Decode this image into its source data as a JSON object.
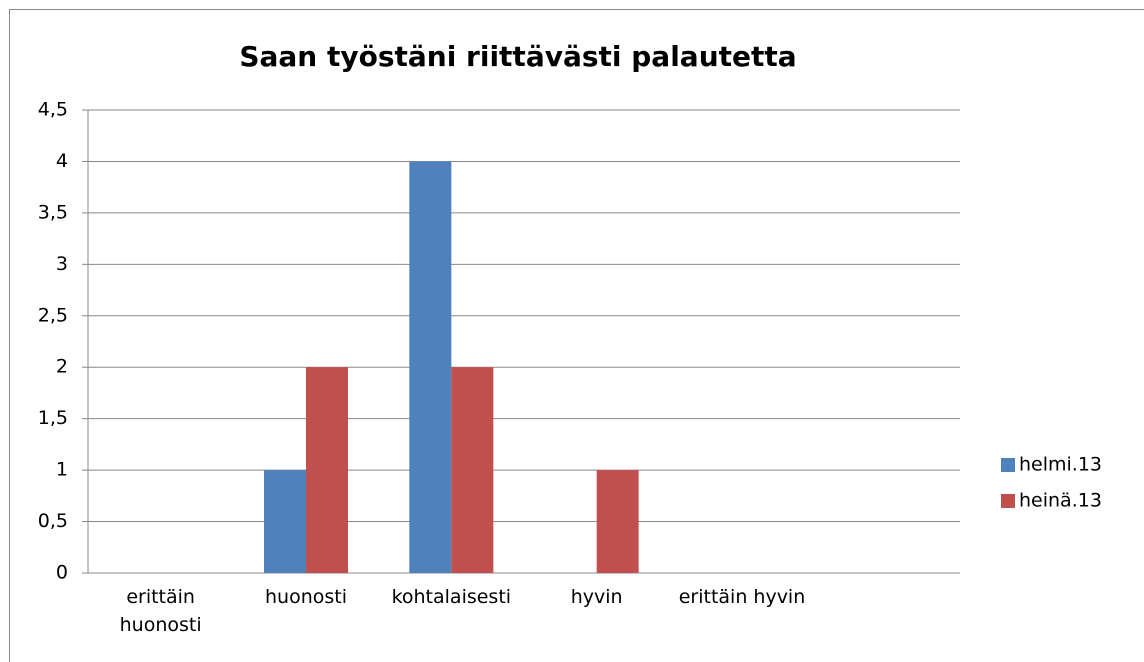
{
  "chart_data": {
    "type": "bar",
    "title": "Saan työstäni riittävästi palautetta",
    "categories": [
      "erittäin huonosti",
      "huonosti",
      "kohtalaisesti",
      "hyvin",
      "erittäin hyvin",
      null
    ],
    "series": [
      {
        "name": "helmi.13",
        "color": "#4f81bd",
        "values": [
          0,
          1,
          4,
          0,
          0,
          null
        ]
      },
      {
        "name": "heinä.13",
        "color": "#c0504d",
        "values": [
          0,
          2,
          2,
          1,
          0,
          null
        ]
      }
    ],
    "ylim": [
      0,
      4.5
    ],
    "yticks": [
      0,
      {
        "value": 0.5,
        "label": "0,5"
      },
      1,
      {
        "value": 1.5,
        "label": "1,5"
      },
      2,
      {
        "value": 2.5,
        "label": "2,5"
      },
      3,
      {
        "value": 3.5,
        "label": "3,5"
      },
      4,
      {
        "value": 4.5,
        "label": "4,5"
      }
    ],
    "grid": true,
    "legend": "right"
  }
}
